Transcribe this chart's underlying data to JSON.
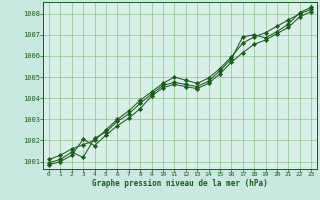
{
  "title": "Graphe pression niveau de la mer (hPa)",
  "background_color": "#c8e8e0",
  "plot_bg_color": "#d8f0e8",
  "grid_color": "#90c090",
  "line_color": "#1a5c1a",
  "marker_color": "#1a5c1a",
  "xmin": -0.5,
  "xmax": 23.5,
  "ymin": 1000.65,
  "ymax": 1008.55,
  "yticks": [
    1001,
    1002,
    1003,
    1004,
    1005,
    1006,
    1007,
    1008
  ],
  "xticks": [
    0,
    1,
    2,
    3,
    4,
    5,
    6,
    7,
    8,
    9,
    10,
    11,
    12,
    13,
    14,
    15,
    16,
    17,
    18,
    19,
    20,
    21,
    22,
    23
  ],
  "series1": [
    1001.1,
    1001.3,
    1001.6,
    1001.8,
    1002.0,
    1002.5,
    1003.0,
    1003.4,
    1003.9,
    1004.3,
    1004.7,
    1005.0,
    1004.85,
    1004.7,
    1004.95,
    1005.4,
    1005.95,
    1006.6,
    1006.9,
    1007.1,
    1007.4,
    1007.7,
    1008.0,
    1008.2
  ],
  "series2": [
    1000.85,
    1001.0,
    1001.3,
    1002.05,
    1001.75,
    1002.25,
    1002.7,
    1003.05,
    1003.5,
    1004.1,
    1004.5,
    1004.65,
    1004.55,
    1004.45,
    1004.7,
    1005.15,
    1005.7,
    1006.15,
    1006.55,
    1006.75,
    1007.05,
    1007.35,
    1007.85,
    1008.1
  ],
  "series3": [
    1000.95,
    1001.1,
    1001.45,
    1001.2,
    1002.1,
    1002.4,
    1002.9,
    1003.25,
    1003.75,
    1004.2,
    1004.6,
    1004.75,
    1004.65,
    1004.55,
    1004.8,
    1005.3,
    1005.85,
    1006.9,
    1007.0,
    1006.85,
    1007.15,
    1007.5,
    1008.05,
    1008.3
  ]
}
